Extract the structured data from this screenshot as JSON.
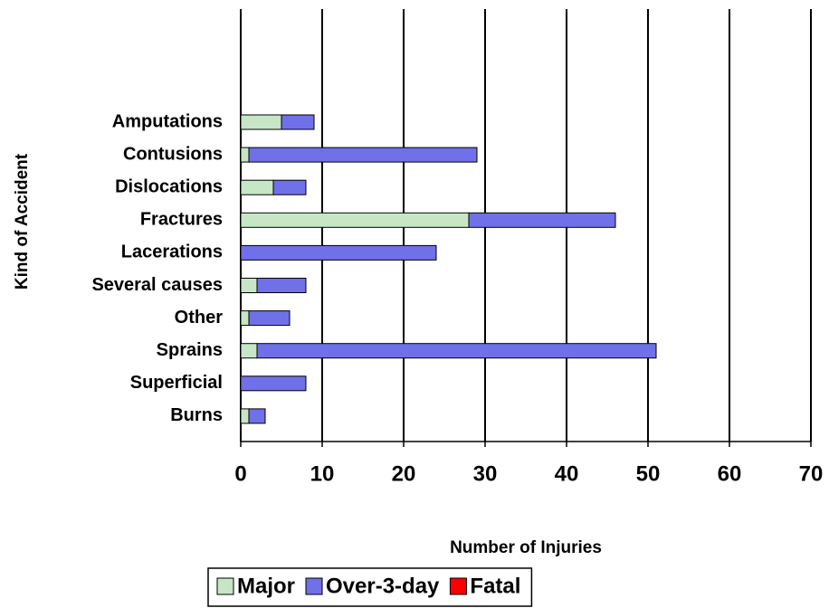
{
  "chart_data": {
    "type": "bar",
    "orientation": "horizontal",
    "stacked": true,
    "x_label": "Number of Injuries",
    "y_label": "Kind of Accident",
    "categories": [
      "Amputations",
      "Contusions",
      "Dislocations",
      "Fractures",
      "Lacerations",
      "Several causes",
      "Other",
      "Sprains",
      "Superficial",
      "Burns"
    ],
    "series": [
      {
        "name": "Major",
        "color": "#c6e6c6",
        "values": [
          5,
          1,
          4,
          28,
          0,
          2,
          1,
          2,
          0,
          1
        ]
      },
      {
        "name": "Over-3-day",
        "color": "#7070e8",
        "values": [
          4,
          28,
          4,
          18,
          24,
          6,
          5,
          49,
          8,
          2
        ]
      },
      {
        "name": "Fatal",
        "color": "#ff0000",
        "values": [
          0,
          0,
          0,
          0,
          0,
          0,
          0,
          0,
          0,
          0
        ]
      }
    ],
    "xlim": [
      0,
      70
    ],
    "xticks": [
      0,
      10,
      20,
      30,
      40,
      50,
      60,
      70
    ],
    "grid": true,
    "legend": "bottom"
  }
}
